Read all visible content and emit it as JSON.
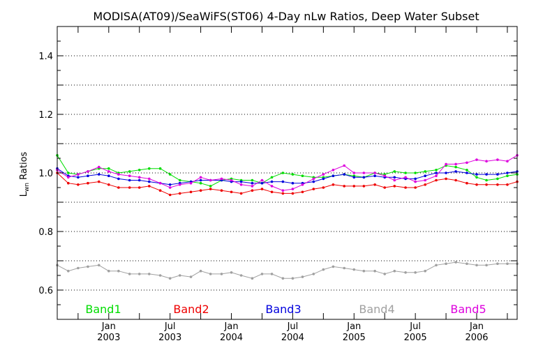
{
  "chart_data": {
    "type": "line",
    "title": "MODISA(AT09)/SeaWiFS(ST06) 4-Day nLw Ratios, Deep Water Subset",
    "ylabel_main": "L",
    "ylabel_sub": "wn",
    "ylabel_rest": " Ratios",
    "xlabel": "",
    "xlim": [
      2002.58,
      2006.33
    ],
    "ylim": [
      0.5,
      1.5
    ],
    "grid": true,
    "legend_position": "bottom",
    "yticks": [
      {
        "value": 0.6,
        "label": "0.6"
      },
      {
        "value": 0.8,
        "label": "0.8"
      },
      {
        "value": 1.0,
        "label": "1.0"
      },
      {
        "value": 1.2,
        "label": "1.2"
      },
      {
        "value": 1.4,
        "label": "1.4"
      }
    ],
    "xticks_major": [
      {
        "value": 2003.0,
        "label_top": "Jan",
        "label_bottom": "2003"
      },
      {
        "value": 2003.5,
        "label_top": "Jul",
        "label_bottom": "2003"
      },
      {
        "value": 2004.0,
        "label_top": "Jan",
        "label_bottom": "2004"
      },
      {
        "value": 2004.5,
        "label_top": "Jul",
        "label_bottom": "2004"
      },
      {
        "value": 2005.0,
        "label_top": "Jan",
        "label_bottom": "2005"
      },
      {
        "value": 2005.5,
        "label_top": "Jul",
        "label_bottom": "2005"
      },
      {
        "value": 2006.0,
        "label_top": "Jan",
        "label_bottom": "2006"
      }
    ],
    "x": [
      2002.58,
      2002.67,
      2002.75,
      2002.83,
      2002.92,
      2003.0,
      2003.08,
      2003.17,
      2003.25,
      2003.33,
      2003.42,
      2003.5,
      2003.58,
      2003.67,
      2003.75,
      2003.83,
      2003.92,
      2004.0,
      2004.08,
      2004.17,
      2004.25,
      2004.33,
      2004.42,
      2004.5,
      2004.58,
      2004.67,
      2004.75,
      2004.83,
      2004.92,
      2005.0,
      2005.08,
      2005.17,
      2005.25,
      2005.33,
      2005.42,
      2005.5,
      2005.58,
      2005.67,
      2005.75,
      2005.83,
      2005.92,
      2006.0,
      2006.08,
      2006.17,
      2006.25,
      2006.33
    ],
    "series": [
      {
        "name": "Band1",
        "color": "#00dd00",
        "values": [
          1.06,
          1.0,
          0.995,
          1.005,
          1.015,
          1.015,
          1.0,
          1.005,
          1.01,
          1.015,
          1.015,
          0.995,
          0.975,
          0.97,
          0.965,
          0.955,
          0.975,
          0.98,
          0.975,
          0.975,
          0.965,
          0.985,
          1.0,
          0.995,
          0.99,
          0.985,
          0.985,
          0.99,
          0.995,
          0.99,
          0.985,
          1.0,
          0.995,
          1.005,
          1.0,
          1.0,
          1.005,
          1.01,
          1.025,
          1.02,
          1.01,
          0.985,
          0.975,
          0.98,
          0.99,
          0.995
        ]
      },
      {
        "name": "Band2",
        "color": "#ee0000",
        "values": [
          1.0,
          0.965,
          0.96,
          0.965,
          0.97,
          0.96,
          0.95,
          0.95,
          0.95,
          0.955,
          0.94,
          0.925,
          0.93,
          0.935,
          0.94,
          0.945,
          0.94,
          0.935,
          0.93,
          0.94,
          0.945,
          0.935,
          0.93,
          0.93,
          0.935,
          0.945,
          0.95,
          0.96,
          0.955,
          0.955,
          0.955,
          0.96,
          0.95,
          0.955,
          0.95,
          0.95,
          0.96,
          0.975,
          0.98,
          0.975,
          0.965,
          0.96,
          0.96,
          0.96,
          0.96,
          0.97
        ]
      },
      {
        "name": "Band3",
        "color": "#0000dd",
        "values": [
          1.015,
          0.99,
          0.985,
          0.99,
          0.995,
          0.99,
          0.98,
          0.975,
          0.975,
          0.97,
          0.965,
          0.96,
          0.965,
          0.97,
          0.975,
          0.975,
          0.975,
          0.97,
          0.97,
          0.965,
          0.965,
          0.97,
          0.97,
          0.965,
          0.965,
          0.97,
          0.98,
          0.99,
          0.995,
          0.985,
          0.985,
          0.99,
          0.985,
          0.985,
          0.98,
          0.98,
          0.99,
          1.0,
          1.0,
          1.005,
          1.0,
          0.995,
          0.995,
          0.995,
          1.0,
          1.005
        ]
      },
      {
        "name": "Band4",
        "color": "#a0a0a0",
        "values": [
          0.685,
          0.665,
          0.675,
          0.68,
          0.685,
          0.665,
          0.665,
          0.655,
          0.655,
          0.655,
          0.65,
          0.64,
          0.65,
          0.645,
          0.665,
          0.655,
          0.655,
          0.66,
          0.65,
          0.64,
          0.655,
          0.655,
          0.64,
          0.64,
          0.645,
          0.655,
          0.67,
          0.68,
          0.675,
          0.67,
          0.665,
          0.665,
          0.655,
          0.665,
          0.66,
          0.66,
          0.665,
          0.685,
          0.69,
          0.695,
          0.69,
          0.685,
          0.685,
          0.69,
          0.69,
          0.69
        ]
      },
      {
        "name": "Band5",
        "color": "#dd00dd",
        "values": [
          1.01,
          0.985,
          0.995,
          1.005,
          1.02,
          1.005,
          0.995,
          0.99,
          0.985,
          0.98,
          0.965,
          0.95,
          0.96,
          0.965,
          0.985,
          0.975,
          0.98,
          0.975,
          0.96,
          0.955,
          0.975,
          0.955,
          0.94,
          0.945,
          0.96,
          0.98,
          0.995,
          1.01,
          1.025,
          1.0,
          1.0,
          1.0,
          0.99,
          0.975,
          0.985,
          0.97,
          0.975,
          0.99,
          1.03,
          1.03,
          1.035,
          1.045,
          1.04,
          1.045,
          1.04,
          1.06
        ]
      }
    ]
  }
}
